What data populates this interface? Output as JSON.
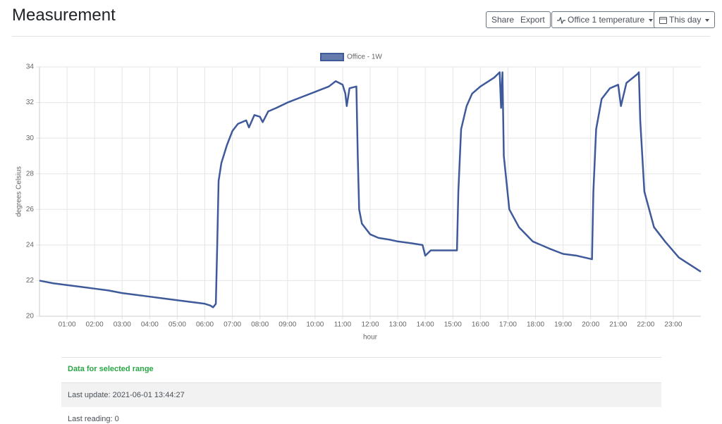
{
  "header": {
    "title": "Measurement",
    "buttons": [
      "Share",
      "Export",
      "Office 1 temperature",
      "This day"
    ]
  },
  "chart_data": {
    "type": "line",
    "x_label": "hour",
    "y_label": "degrees Celsius",
    "legend": "top",
    "grid": true,
    "xlim": [
      0,
      24
    ],
    "xticks": [
      {
        "value": 1,
        "label": "01:00"
      },
      {
        "value": 2,
        "label": "02:00"
      },
      {
        "value": 3,
        "label": "03:00"
      },
      {
        "value": 4,
        "label": "04:00"
      },
      {
        "value": 5,
        "label": "05:00"
      },
      {
        "value": 6,
        "label": "06:00"
      },
      {
        "value": 7,
        "label": "07:00"
      },
      {
        "value": 8,
        "label": "08:00"
      },
      {
        "value": 9,
        "label": "09:00"
      },
      {
        "value": 10,
        "label": "10:00"
      },
      {
        "value": 11,
        "label": "11:00"
      },
      {
        "value": 12,
        "label": "12:00"
      },
      {
        "value": 13,
        "label": "13:00"
      },
      {
        "value": 14,
        "label": "14:00"
      },
      {
        "value": 15,
        "label": "15:00"
      },
      {
        "value": 16,
        "label": "16:00"
      },
      {
        "value": 17,
        "label": "17:00"
      },
      {
        "value": 18,
        "label": "18:00"
      },
      {
        "value": 19,
        "label": "19:00"
      },
      {
        "value": 20,
        "label": "20:00"
      },
      {
        "value": 21,
        "label": "21:00"
      },
      {
        "value": 22,
        "label": "22:00"
      },
      {
        "value": 23,
        "label": "23:00"
      }
    ],
    "ylim": [
      20,
      34
    ],
    "yticks": [
      20,
      22,
      24,
      26,
      28,
      30,
      32,
      34
    ],
    "x": [
      0,
      0.5,
      1,
      1.5,
      2,
      2.5,
      3,
      3.5,
      4,
      4.5,
      5,
      5.5,
      6,
      6.2,
      6.3,
      6.4,
      6.45,
      6.5,
      6.6,
      6.8,
      7.0,
      7.2,
      7.5,
      7.6,
      7.8,
      8.0,
      8.1,
      8.3,
      8.6,
      9,
      9.5,
      10,
      10.5,
      10.75,
      11.0,
      11.1,
      11.15,
      11.25,
      11.5,
      11.55,
      11.6,
      11.7,
      12,
      12.3,
      12.7,
      13,
      13.5,
      13.9,
      14.0,
      14.2,
      15.15,
      15.2,
      15.3,
      15.5,
      15.7,
      16,
      16.5,
      16.7,
      16.75,
      16.8,
      16.85,
      17.05,
      17.4,
      17.9,
      18.5,
      19,
      19.5,
      20.05,
      20.1,
      20.2,
      20.4,
      20.7,
      21.0,
      21.1,
      21.3,
      21.7,
      21.75,
      21.8,
      21.95,
      22.3,
      22.7,
      23.2,
      23.5,
      24
    ],
    "series": [
      {
        "name": "Office - 1W",
        "color": "#3f5a9a",
        "values": [
          22.0,
          21.85,
          21.75,
          21.65,
          21.55,
          21.45,
          21.3,
          21.2,
          21.1,
          21.0,
          20.9,
          20.8,
          20.7,
          20.6,
          20.5,
          20.7,
          24.0,
          27.6,
          28.6,
          29.6,
          30.4,
          30.8,
          31.0,
          30.6,
          31.3,
          31.2,
          30.9,
          31.5,
          31.7,
          32.0,
          32.3,
          32.6,
          32.9,
          33.2,
          33.0,
          32.5,
          31.8,
          32.8,
          32.9,
          29.0,
          26.0,
          25.2,
          24.6,
          24.4,
          24.3,
          24.2,
          24.1,
          24.0,
          23.4,
          23.7,
          23.7,
          27.0,
          30.5,
          31.8,
          32.5,
          32.9,
          33.4,
          33.7,
          31.7,
          33.7,
          29.0,
          26.0,
          25.0,
          24.2,
          23.8,
          23.5,
          23.4,
          23.2,
          27.0,
          30.5,
          32.2,
          32.8,
          33.0,
          31.8,
          33.1,
          33.6,
          33.7,
          31.0,
          27.0,
          25.0,
          24.2,
          23.3,
          23.0,
          22.5
        ]
      }
    ]
  },
  "info": {
    "heading": "Data for selected range",
    "last_update": "Last update: 2021-06-01 13:44:27",
    "last_reading": "Last reading: 0"
  }
}
